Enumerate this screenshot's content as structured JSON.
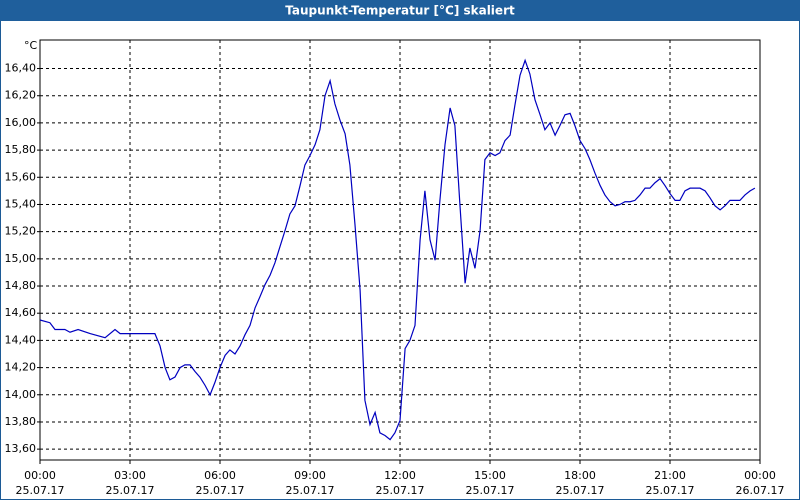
{
  "chart_data": {
    "type": "line",
    "title": "Taupunkt-Temperatur [°C] skaliert",
    "y_unit": "°C",
    "color": "#0000c0",
    "grid": true,
    "xlim": [
      0,
      24
    ],
    "ylim": [
      13.52,
      16.61
    ],
    "xticks": [
      {
        "value": 0,
        "label": "00:00",
        "date": "25.07.17"
      },
      {
        "value": 3,
        "label": "03:00",
        "date": "25.07.17"
      },
      {
        "value": 6,
        "label": "06:00",
        "date": "25.07.17"
      },
      {
        "value": 9,
        "label": "09:00",
        "date": "25.07.17"
      },
      {
        "value": 12,
        "label": "12:00",
        "date": "25.07.17"
      },
      {
        "value": 15,
        "label": "15:00",
        "date": "25.07.17"
      },
      {
        "value": 18,
        "label": "18:00",
        "date": "25.07.17"
      },
      {
        "value": 21,
        "label": "21:00",
        "date": "25.07.17"
      },
      {
        "value": 24,
        "label": "00:00",
        "date": "26.07.17"
      }
    ],
    "yticks": [
      {
        "value": 13.6,
        "label": "13,60"
      },
      {
        "value": 13.8,
        "label": "13,80"
      },
      {
        "value": 14.0,
        "label": "14,00"
      },
      {
        "value": 14.2,
        "label": "14,20"
      },
      {
        "value": 14.4,
        "label": "14,40"
      },
      {
        "value": 14.6,
        "label": "14,60"
      },
      {
        "value": 14.8,
        "label": "14,80"
      },
      {
        "value": 15.0,
        "label": "15,00"
      },
      {
        "value": 15.2,
        "label": "15,20"
      },
      {
        "value": 15.4,
        "label": "15,40"
      },
      {
        "value": 15.6,
        "label": "15,60"
      },
      {
        "value": 15.8,
        "label": "15,80"
      },
      {
        "value": 16.0,
        "label": "16,00"
      },
      {
        "value": 16.2,
        "label": "16,20"
      },
      {
        "value": 16.4,
        "label": "16,40"
      }
    ],
    "x": [
      0,
      0.33,
      0.5,
      0.83,
      1,
      1.27,
      1.67,
      2.17,
      2.5,
      2.67,
      3.33,
      3.5,
      3.83,
      4,
      4.17,
      4.33,
      4.5,
      4.67,
      4.83,
      5,
      5.17,
      5.33,
      5.5,
      5.67,
      5.83,
      6,
      6.17,
      6.33,
      6.5,
      6.67,
      6.83,
      7,
      7.17,
      7.33,
      7.5,
      7.67,
      7.83,
      8,
      8.17,
      8.33,
      8.5,
      8.67,
      8.83,
      9,
      9.17,
      9.33,
      9.5,
      9.67,
      9.83,
      10,
      10.17,
      10.33,
      10.5,
      10.67,
      10.83,
      11,
      11.17,
      11.33,
      11.5,
      11.67,
      11.83,
      12,
      12.17,
      12.33,
      12.5,
      12.67,
      12.83,
      13,
      13.17,
      13.33,
      13.5,
      13.67,
      13.83,
      14,
      14.17,
      14.33,
      14.5,
      14.67,
      14.83,
      15,
      15.17,
      15.33,
      15.5,
      15.67,
      15.83,
      16,
      16.17,
      16.33,
      16.5,
      16.67,
      16.83,
      17,
      17.17,
      17.33,
      17.5,
      17.67,
      17.83,
      18,
      18.17,
      18.33,
      18.5,
      18.67,
      18.83,
      19,
      19.17,
      19.33,
      19.5,
      19.67,
      19.83,
      20,
      20.17,
      20.33,
      20.5,
      20.67,
      20.83,
      21,
      21.17,
      21.33,
      21.5,
      21.67,
      22,
      22.17,
      22.33,
      22.5,
      22.67,
      22.83,
      23,
      23.33,
      23.5,
      23.67,
      23.83
    ],
    "values": [
      14.55,
      14.53,
      14.48,
      14.48,
      14.46,
      14.48,
      14.45,
      14.42,
      14.48,
      14.45,
      14.45,
      14.45,
      14.45,
      14.36,
      14.2,
      14.11,
      14.13,
      14.2,
      14.22,
      14.22,
      14.17,
      14.13,
      14.07,
      14.0,
      14.09,
      14.2,
      14.29,
      14.33,
      14.3,
      14.36,
      14.44,
      14.51,
      14.64,
      14.72,
      14.81,
      14.88,
      14.97,
      15.09,
      15.21,
      15.33,
      15.39,
      15.54,
      15.69,
      15.76,
      15.84,
      15.95,
      16.2,
      16.31,
      16.14,
      16.02,
      15.92,
      15.69,
      15.25,
      14.77,
      13.96,
      13.78,
      13.87,
      13.72,
      13.7,
      13.67,
      13.72,
      13.81,
      14.34,
      14.4,
      14.51,
      15.14,
      15.5,
      15.14,
      14.99,
      15.43,
      15.84,
      16.11,
      15.98,
      15.39,
      14.82,
      15.08,
      14.93,
      15.21,
      15.73,
      15.78,
      15.76,
      15.78,
      15.87,
      15.91,
      16.13,
      16.35,
      16.46,
      16.36,
      16.17,
      16.06,
      15.95,
      16.0,
      15.91,
      15.98,
      16.06,
      16.07,
      15.98,
      15.87,
      15.81,
      15.73,
      15.63,
      15.54,
      15.47,
      15.42,
      15.39,
      15.4,
      15.42,
      15.42,
      15.43,
      15.47,
      15.52,
      15.52,
      15.56,
      15.59,
      15.54,
      15.48,
      15.43,
      15.43,
      15.5,
      15.52,
      15.52,
      15.5,
      15.45,
      15.39,
      15.36,
      15.39,
      15.43,
      15.43,
      15.47,
      15.5,
      15.52
    ]
  }
}
